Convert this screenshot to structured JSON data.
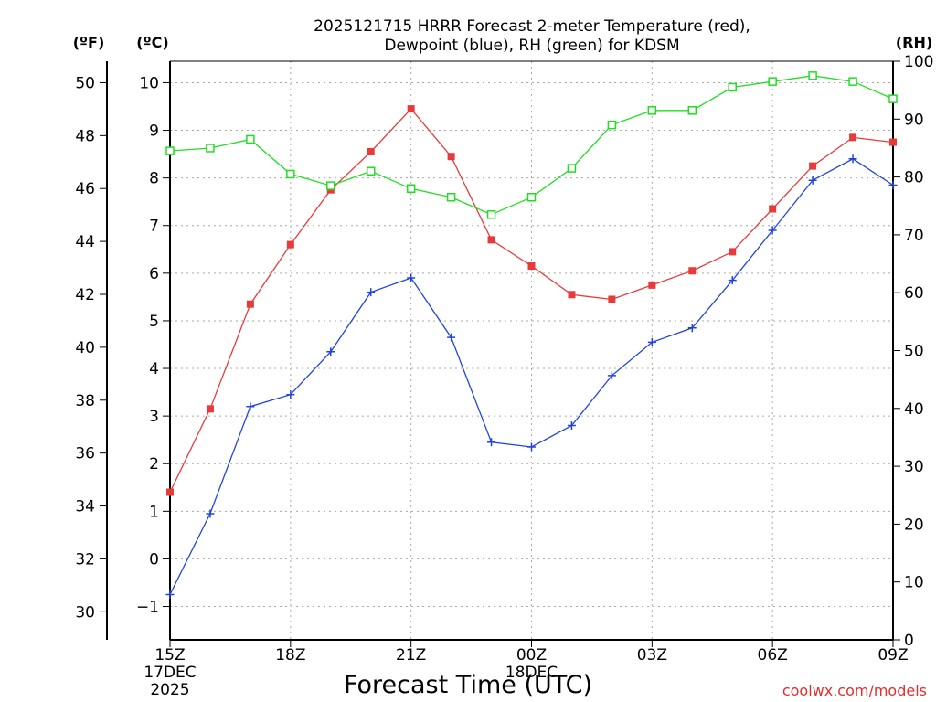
{
  "chart_data": {
    "type": "line",
    "title_line1": "2025121715 HRRR Forecast 2-meter Temperature (red),",
    "title_line2": "Dewpoint (blue), RH (green) for KDSM",
    "xlabel": "Forecast Time (UTC)",
    "credit": "coolwx.com/models",
    "units": {
      "fahrenheit": "(ºF)",
      "celsius": "(ºC)",
      "rh": "(RH)"
    },
    "hours": [
      0,
      1,
      2,
      3,
      4,
      5,
      6,
      7,
      8,
      9,
      10,
      11,
      12,
      13,
      14,
      15,
      16,
      17,
      18
    ],
    "x_ticks": [
      {
        "hour": 0,
        "lines": [
          "15Z",
          "17DEC",
          "2025"
        ]
      },
      {
        "hour": 3,
        "lines": [
          "18Z"
        ]
      },
      {
        "hour": 6,
        "lines": [
          "21Z"
        ]
      },
      {
        "hour": 9,
        "lines": [
          "00Z",
          "18DEC"
        ]
      },
      {
        "hour": 12,
        "lines": [
          "03Z"
        ]
      },
      {
        "hour": 15,
        "lines": [
          "06Z"
        ]
      },
      {
        "hour": 18,
        "lines": [
          "09Z"
        ]
      }
    ],
    "xlim": [
      0,
      18
    ],
    "celsius_axis": {
      "ylim": [
        -1.7,
        10.45
      ],
      "ticks": [
        "-1",
        "0",
        "1",
        "2",
        "3",
        "4",
        "5",
        "6",
        "7",
        "8",
        "9",
        "10"
      ]
    },
    "fahrenheit_axis": {
      "ticks": [
        "30",
        "32",
        "34",
        "36",
        "38",
        "40",
        "42",
        "44",
        "46",
        "48",
        "50"
      ]
    },
    "rh_axis": {
      "ylim": [
        0,
        100
      ],
      "ticks": [
        "0",
        "10",
        "20",
        "30",
        "40",
        "50",
        "60",
        "70",
        "80",
        "90",
        "100"
      ]
    },
    "series": [
      {
        "name": "Temperature",
        "color": "#e83a3a",
        "marker": "filled-square",
        "axis": "celsius",
        "values": [
          1.4,
          3.15,
          5.35,
          6.6,
          7.75,
          8.55,
          9.45,
          8.45,
          6.7,
          6.15,
          5.55,
          5.45,
          5.75,
          6.05,
          6.45,
          7.35,
          8.25,
          8.85,
          8.75
        ]
      },
      {
        "name": "Dewpoint",
        "color": "#2244dd",
        "marker": "plus",
        "axis": "celsius",
        "values": [
          -0.75,
          0.95,
          3.2,
          3.45,
          4.35,
          5.6,
          5.9,
          4.65,
          2.45,
          2.35,
          2.8,
          3.85,
          4.55,
          4.85,
          5.85,
          6.9,
          7.95,
          8.4,
          7.85
        ]
      },
      {
        "name": "RH",
        "color": "#22dd22",
        "marker": "hollow-square",
        "axis": "rh",
        "values": [
          84.5,
          85,
          86.5,
          80.5,
          78.5,
          81,
          78,
          76.5,
          73.5,
          76.5,
          81.5,
          89,
          91.5,
          91.5,
          95.5,
          96.5,
          97.5,
          96.5,
          93.5
        ]
      }
    ]
  }
}
